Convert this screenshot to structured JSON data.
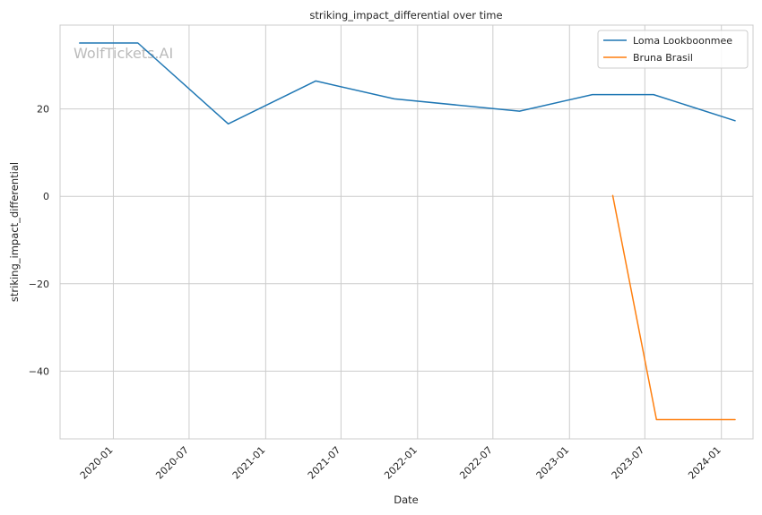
{
  "chart_data": {
    "type": "line",
    "title": "striking_impact_differential over time",
    "xlabel": "Date",
    "ylabel": "striking_impact_differential",
    "watermark": "WolfTickets.AI",
    "x_ticks": [
      "2020-01",
      "2020-07",
      "2021-01",
      "2021-07",
      "2022-01",
      "2022-07",
      "2023-01",
      "2023-07",
      "2024-01"
    ],
    "y_ticks": [
      20,
      0,
      -20,
      -40
    ],
    "y_tick_labels": [
      "20",
      "0",
      "−20",
      "−40"
    ],
    "xlim": [
      "2019-08-26",
      "2024-03-17"
    ],
    "ylim": [
      -55.5,
      39.2
    ],
    "grid": true,
    "legend_position": "top-right",
    "series": [
      {
        "name": "Loma Lookboonmee",
        "color": "#1f77b4",
        "x": [
          "2019-10-12",
          "2020-02-29",
          "2020-10-03",
          "2021-05-01",
          "2021-11-06",
          "2022-09-03",
          "2023-02-25",
          "2023-07-22",
          "2024-02-03"
        ],
        "y": [
          35.1,
          35.1,
          16.6,
          26.4,
          22.3,
          19.5,
          23.3,
          23.3,
          17.3
        ]
      },
      {
        "name": "Bruna Brasil",
        "color": "#ff7f0e",
        "x": [
          "2023-04-15",
          "2023-07-29",
          "2024-02-03"
        ],
        "y": [
          0.2,
          -51.1,
          -51.1
        ]
      }
    ]
  }
}
